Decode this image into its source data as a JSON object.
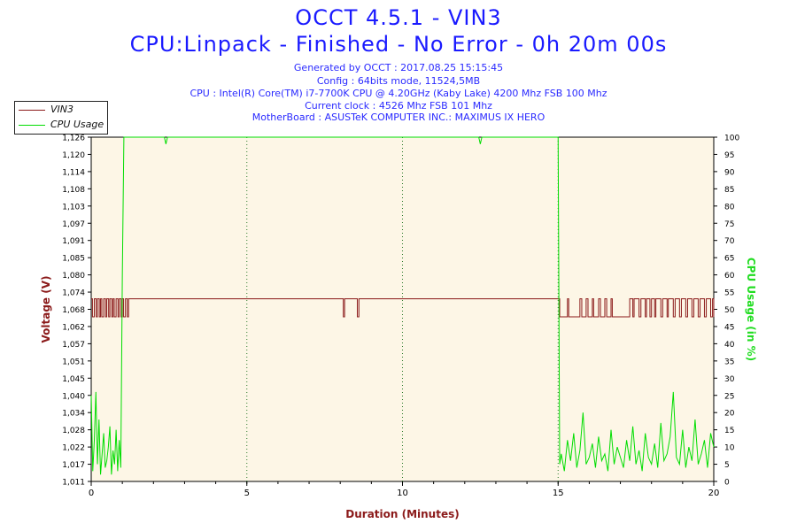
{
  "header": {
    "title": "OCCT 4.5.1 - VIN3",
    "subtitle": "CPU:Linpack - Finished - No Error - 0h 20m 00s",
    "info": [
      "Generated by OCCT : 2017.08.25 15:15:45",
      "Config : 64bits mode, 11524,5MB",
      "CPU : Intel(R) Core(TM) i7-7700K CPU @ 4.20GHz (Kaby Lake) 4200 Mhz FSB 100 Mhz",
      "Current clock : 4526 Mhz FSB 101 Mhz",
      "MotherBoard : ASUSTeK COMPUTER INC.: MAXIMUS IX HERO"
    ]
  },
  "legend": {
    "vin3": "VIN3",
    "cpu": "CPU Usage"
  },
  "colors": {
    "voltage": "#8b1a1a",
    "cpu": "#00dd00",
    "title": "#1a1aff",
    "plot_bg": "#fdf6e6",
    "grid": "#2a7a2a"
  },
  "chart_data": {
    "type": "line",
    "xlabel": "Duration (Minutes)",
    "ylabel_left": "Voltage (V)",
    "ylabel_right": "CPU Usage (in %)",
    "xlim": [
      0,
      20
    ],
    "ylim_left": [
      1.011,
      1.126
    ],
    "ylim_right": [
      0,
      100
    ],
    "x_ticks": [
      "0",
      "5",
      "10",
      "15",
      "20"
    ],
    "left_ticks": [
      "1,011",
      "1,017",
      "1,022",
      "1,028",
      "1,034",
      "1,040",
      "1,045",
      "1,051",
      "1,057",
      "1,062",
      "1,068",
      "1,074",
      "1,080",
      "1,085",
      "1,091",
      "1,097",
      "1,103",
      "1,108",
      "1,114",
      "1,120",
      "1,126"
    ],
    "right_ticks": [
      "0",
      "5",
      "10",
      "15",
      "20",
      "25",
      "30",
      "35",
      "40",
      "45",
      "50",
      "55",
      "60",
      "65",
      "70",
      "75",
      "80",
      "85",
      "90",
      "95",
      "100"
    ],
    "grid": true,
    "legend_position": "top-left",
    "series": [
      {
        "name": "VIN3",
        "axis": "left",
        "baseline": 1.072,
        "step_values": [
          1.072,
          1.066
        ],
        "x": [
          0,
          0.04,
          0.1,
          0.16,
          0.2,
          0.26,
          0.3,
          0.34,
          0.4,
          0.46,
          0.5,
          0.56,
          0.6,
          0.66,
          0.7,
          0.74,
          0.8,
          0.86,
          0.9,
          0.96,
          1.0,
          1.04,
          1.1,
          1.16,
          1.2,
          1.24,
          8.1,
          8.14,
          8.55,
          8.6,
          15.0,
          15.05,
          15.3,
          15.34,
          15.7,
          15.76,
          15.9,
          15.96,
          16.1,
          16.14,
          16.3,
          16.36,
          16.5,
          16.56,
          16.7,
          16.74,
          16.8,
          17.3,
          17.3,
          17.4,
          17.44,
          17.6,
          17.66,
          17.8,
          17.84,
          17.95,
          18.0,
          18.1,
          18.14,
          18.3,
          18.36,
          18.5,
          18.54,
          18.7,
          18.76,
          18.9,
          18.96,
          19.1,
          19.16,
          19.3,
          19.36,
          19.5,
          19.56,
          19.7,
          19.76,
          19.9,
          19.96,
          20.0
        ],
        "values": [
          1.072,
          1.066,
          1.072,
          1.066,
          1.072,
          1.066,
          1.072,
          1.066,
          1.072,
          1.066,
          1.072,
          1.066,
          1.072,
          1.066,
          1.072,
          1.066,
          1.072,
          1.066,
          1.072,
          1.066,
          1.072,
          1.066,
          1.072,
          1.066,
          1.072,
          1.072,
          1.066,
          1.072,
          1.066,
          1.072,
          1.072,
          1.066,
          1.072,
          1.066,
          1.072,
          1.066,
          1.072,
          1.066,
          1.072,
          1.066,
          1.072,
          1.066,
          1.072,
          1.066,
          1.072,
          1.066,
          1.066,
          1.066,
          1.072,
          1.066,
          1.072,
          1.066,
          1.072,
          1.066,
          1.072,
          1.066,
          1.072,
          1.066,
          1.072,
          1.066,
          1.072,
          1.066,
          1.072,
          1.066,
          1.072,
          1.066,
          1.072,
          1.066,
          1.072,
          1.066,
          1.072,
          1.066,
          1.072,
          1.066,
          1.072,
          1.066,
          1.072,
          1.066
        ]
      },
      {
        "name": "CPU Usage",
        "axis": "right",
        "x": [
          0,
          0.05,
          0.1,
          0.15,
          0.2,
          0.25,
          0.3,
          0.35,
          0.4,
          0.45,
          0.5,
          0.55,
          0.6,
          0.65,
          0.7,
          0.75,
          0.8,
          0.85,
          0.9,
          0.95,
          1.0,
          1.05,
          1.1,
          2.35,
          2.4,
          2.45,
          12.45,
          12.5,
          12.55,
          14.95,
          15.0,
          15.05,
          15.1,
          15.2,
          15.3,
          15.4,
          15.5,
          15.6,
          15.7,
          15.8,
          15.9,
          16.0,
          16.1,
          16.2,
          16.3,
          16.4,
          16.5,
          16.6,
          16.7,
          16.8,
          16.9,
          17.0,
          17.1,
          17.2,
          17.3,
          17.4,
          17.5,
          17.6,
          17.7,
          17.8,
          17.9,
          18.0,
          18.1,
          18.2,
          18.3,
          18.4,
          18.5,
          18.6,
          18.7,
          18.8,
          18.9,
          19.0,
          19.1,
          19.2,
          19.3,
          19.4,
          19.5,
          19.6,
          19.7,
          19.8,
          19.9,
          20.0
        ],
        "values": [
          25,
          3,
          12,
          26,
          5,
          18,
          2,
          8,
          14,
          4,
          6,
          10,
          16,
          2,
          9,
          5,
          15,
          3,
          12,
          4,
          60,
          100,
          100,
          100,
          98,
          100,
          100,
          98,
          100,
          100,
          100,
          5,
          8,
          3,
          12,
          6,
          14,
          4,
          9,
          20,
          5,
          7,
          11,
          4,
          13,
          6,
          8,
          3,
          15,
          5,
          10,
          7,
          4,
          12,
          6,
          16,
          5,
          9,
          3,
          14,
          7,
          5,
          11,
          4,
          17,
          6,
          8,
          13,
          26,
          7,
          5,
          15,
          4,
          10,
          6,
          18,
          5,
          8,
          12,
          4,
          14,
          10
        ]
      }
    ]
  }
}
